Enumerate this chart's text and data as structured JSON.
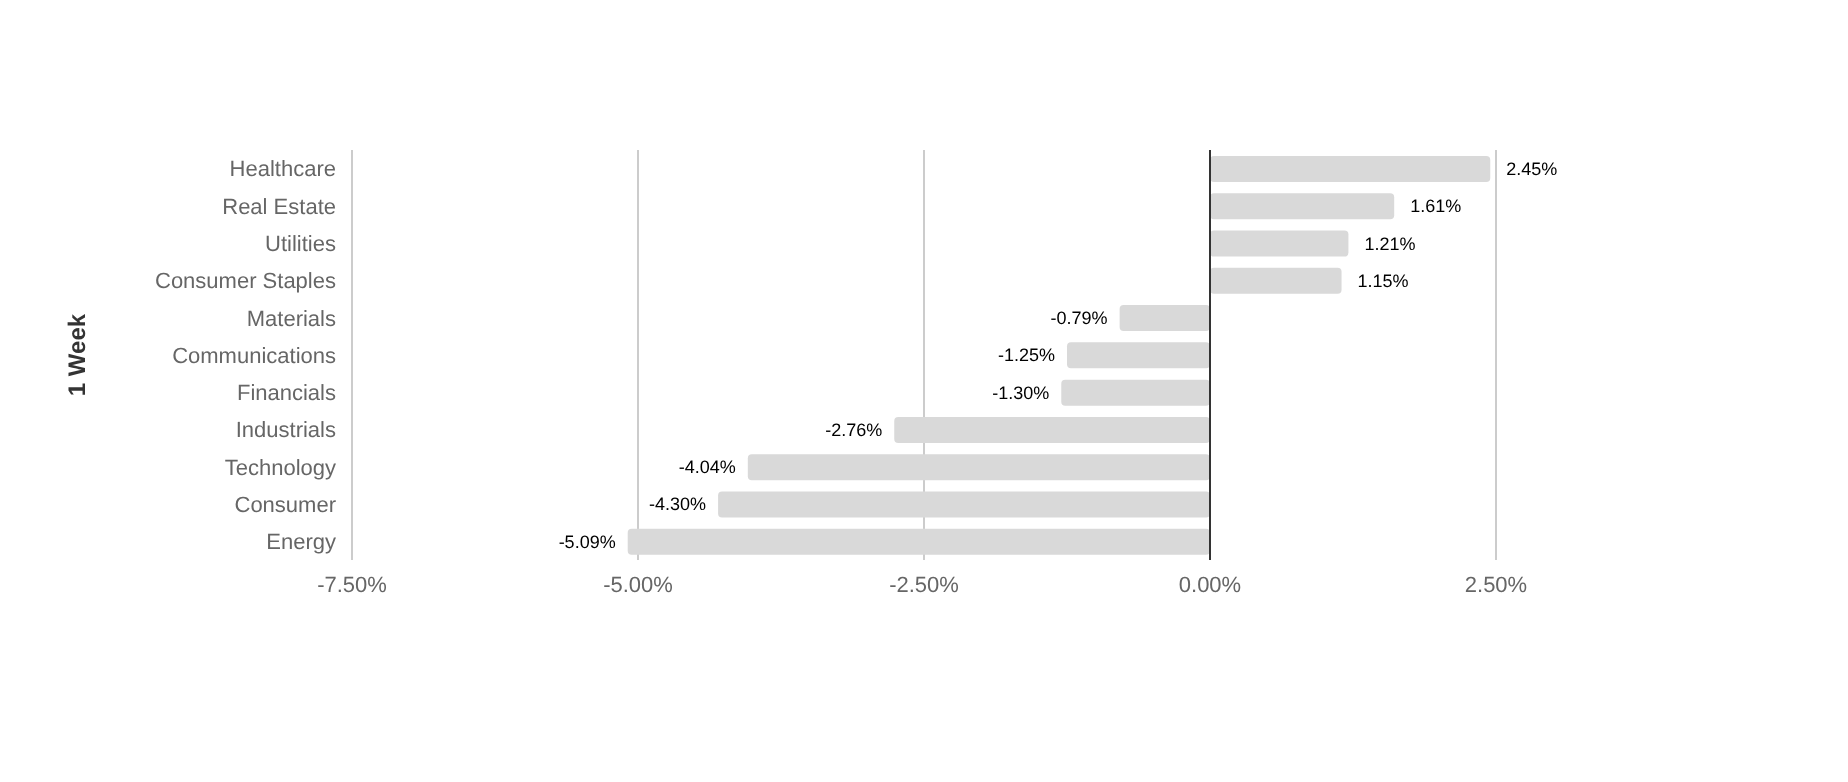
{
  "chart_data": {
    "type": "bar",
    "orientation": "horizontal",
    "ylabel": "1 Week",
    "categories": [
      "Healthcare",
      "Real Estate",
      "Utilities",
      "Consumer Staples",
      "Materials",
      "Communications",
      "Financials",
      "Industrials",
      "Technology",
      "Consumer",
      "Energy"
    ],
    "values": [
      2.45,
      1.61,
      1.21,
      1.15,
      -0.79,
      -1.25,
      -1.3,
      -2.76,
      -4.04,
      -4.3,
      -5.09
    ],
    "value_labels": [
      "2.45%",
      "1.61%",
      "1.21%",
      "1.15%",
      "-0.79%",
      "-1.25%",
      "-1.30%",
      "-2.76%",
      "-4.04%",
      "-4.30%",
      "-5.09%"
    ],
    "color": "#d9d9d9",
    "xlim": [
      -7.5,
      2.5
    ],
    "xticks": [
      {
        "value": -7.5,
        "label": "-7.50%"
      },
      {
        "value": -5,
        "label": "-5.00%"
      },
      {
        "value": -2.5,
        "label": "-2.50%"
      },
      {
        "value": 0,
        "label": "0.00%"
      },
      {
        "value": 2.5,
        "label": "2.50%"
      }
    ],
    "ref_lines": [
      {
        "axis": "x",
        "value": 0,
        "label": null,
        "color": "#333333"
      }
    ],
    "grid": "x"
  }
}
